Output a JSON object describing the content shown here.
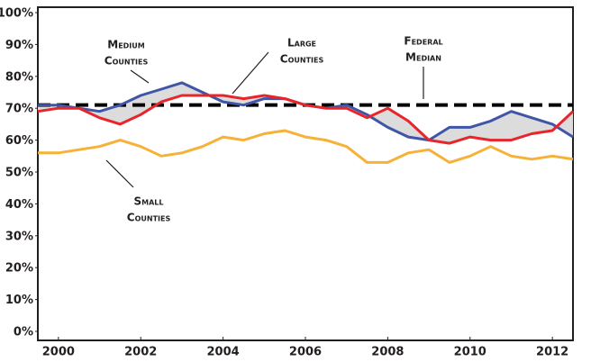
{
  "chart_data": {
    "type": "line",
    "x": [
      1999.5,
      2000,
      2000.5,
      2001,
      2001.5,
      2002,
      2002.5,
      2003,
      2003.5,
      2004,
      2004.5,
      2005,
      2005.5,
      2006,
      2006.5,
      2007,
      2007.5,
      2008,
      2008.5,
      2009,
      2009.5,
      2010,
      2010.5,
      2011,
      2011.5,
      2012,
      2012.5
    ],
    "series": [
      {
        "color": "#3f55a6",
        "values": [
          71,
          71,
          70,
          69,
          71,
          74,
          76,
          78,
          75,
          72,
          71,
          73,
          73,
          71,
          70,
          71,
          68,
          64,
          61,
          60,
          64,
          64,
          66,
          69,
          67,
          65,
          61
        ]
      },
      {
        "color": "#e8252b",
        "values": [
          69,
          70,
          70,
          67,
          65,
          68,
          72,
          74,
          74,
          74,
          73,
          74,
          73,
          71,
          70,
          70,
          67,
          70,
          66,
          60,
          59,
          61,
          60,
          60,
          62,
          63,
          69
        ]
      },
      {
        "color": "#f7b136",
        "values": [
          56,
          56,
          57,
          58,
          60,
          58,
          55,
          56,
          58,
          61,
          60,
          62,
          63,
          61,
          60,
          58,
          53,
          53,
          56,
          57,
          53,
          55,
          58,
          55,
          54,
          55,
          54
        ]
      }
    ],
    "reference_line": {
      "value": 71,
      "color": "#000000"
    },
    "spread_fill": "#dcdcdc",
    "annotations": [
      {
        "lines": [
          "Medium",
          "Counties"
        ]
      },
      {
        "lines": [
          "Large",
          "Counties"
        ]
      },
      {
        "lines": [
          "Federal",
          "Median"
        ]
      },
      {
        "lines": [
          "Small",
          "Counties"
        ]
      }
    ],
    "xlim": [
      1999.5,
      2012.5
    ],
    "xticks": [
      2000,
      2002,
      2004,
      2006,
      2008,
      2010,
      2012
    ],
    "ylim": [
      0,
      100
    ],
    "yticks": [
      {
        "value": 0,
        "label": "0%"
      },
      {
        "value": 10,
        "label": "10%"
      },
      {
        "value": 20,
        "label": "20%"
      },
      {
        "value": 30,
        "label": "30%"
      },
      {
        "value": 40,
        "label": "40%"
      },
      {
        "value": 50,
        "label": "50%"
      },
      {
        "value": 60,
        "label": "60%"
      },
      {
        "value": 70,
        "label": "70%"
      },
      {
        "value": 80,
        "label": "80%"
      },
      {
        "value": 90,
        "label": "90%"
      },
      {
        "value": 100,
        "label": "100%"
      }
    ],
    "grid": false
  }
}
